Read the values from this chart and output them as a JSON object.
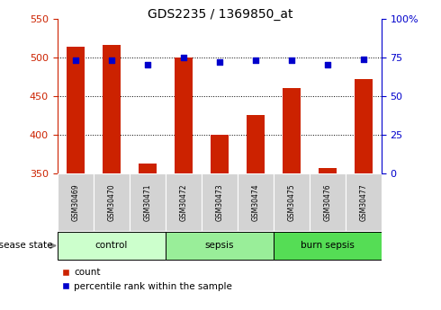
{
  "title": "GDS2235 / 1369850_at",
  "samples": [
    "GSM30469",
    "GSM30470",
    "GSM30471",
    "GSM30472",
    "GSM30473",
    "GSM30474",
    "GSM30475",
    "GSM30476",
    "GSM30477"
  ],
  "counts": [
    514,
    516,
    363,
    500,
    400,
    426,
    460,
    357,
    472
  ],
  "percentile_ranks": [
    73,
    73,
    70,
    75,
    72,
    73,
    73,
    70,
    74
  ],
  "groups": [
    {
      "label": "control",
      "indices": [
        0,
        1,
        2
      ],
      "color": "#ccffcc"
    },
    {
      "label": "sepsis",
      "indices": [
        3,
        4,
        5
      ],
      "color": "#99ee99"
    },
    {
      "label": "burn sepsis",
      "indices": [
        6,
        7,
        8
      ],
      "color": "#55dd55"
    }
  ],
  "ylim_left": [
    350,
    550
  ],
  "ylim_right": [
    0,
    100
  ],
  "yticks_left": [
    350,
    400,
    450,
    500,
    550
  ],
  "yticks_right": [
    0,
    25,
    50,
    75,
    100
  ],
  "bar_color": "#cc2200",
  "scatter_color": "#0000cc",
  "bar_width": 0.5,
  "label_count": "count",
  "label_percentile": "percentile rank within the sample",
  "disease_state_label": "disease state",
  "left_yaxis_color": "#cc2200",
  "right_yaxis_color": "#0000cc",
  "sample_box_color": "#d3d3d3",
  "plot_bg": "white"
}
